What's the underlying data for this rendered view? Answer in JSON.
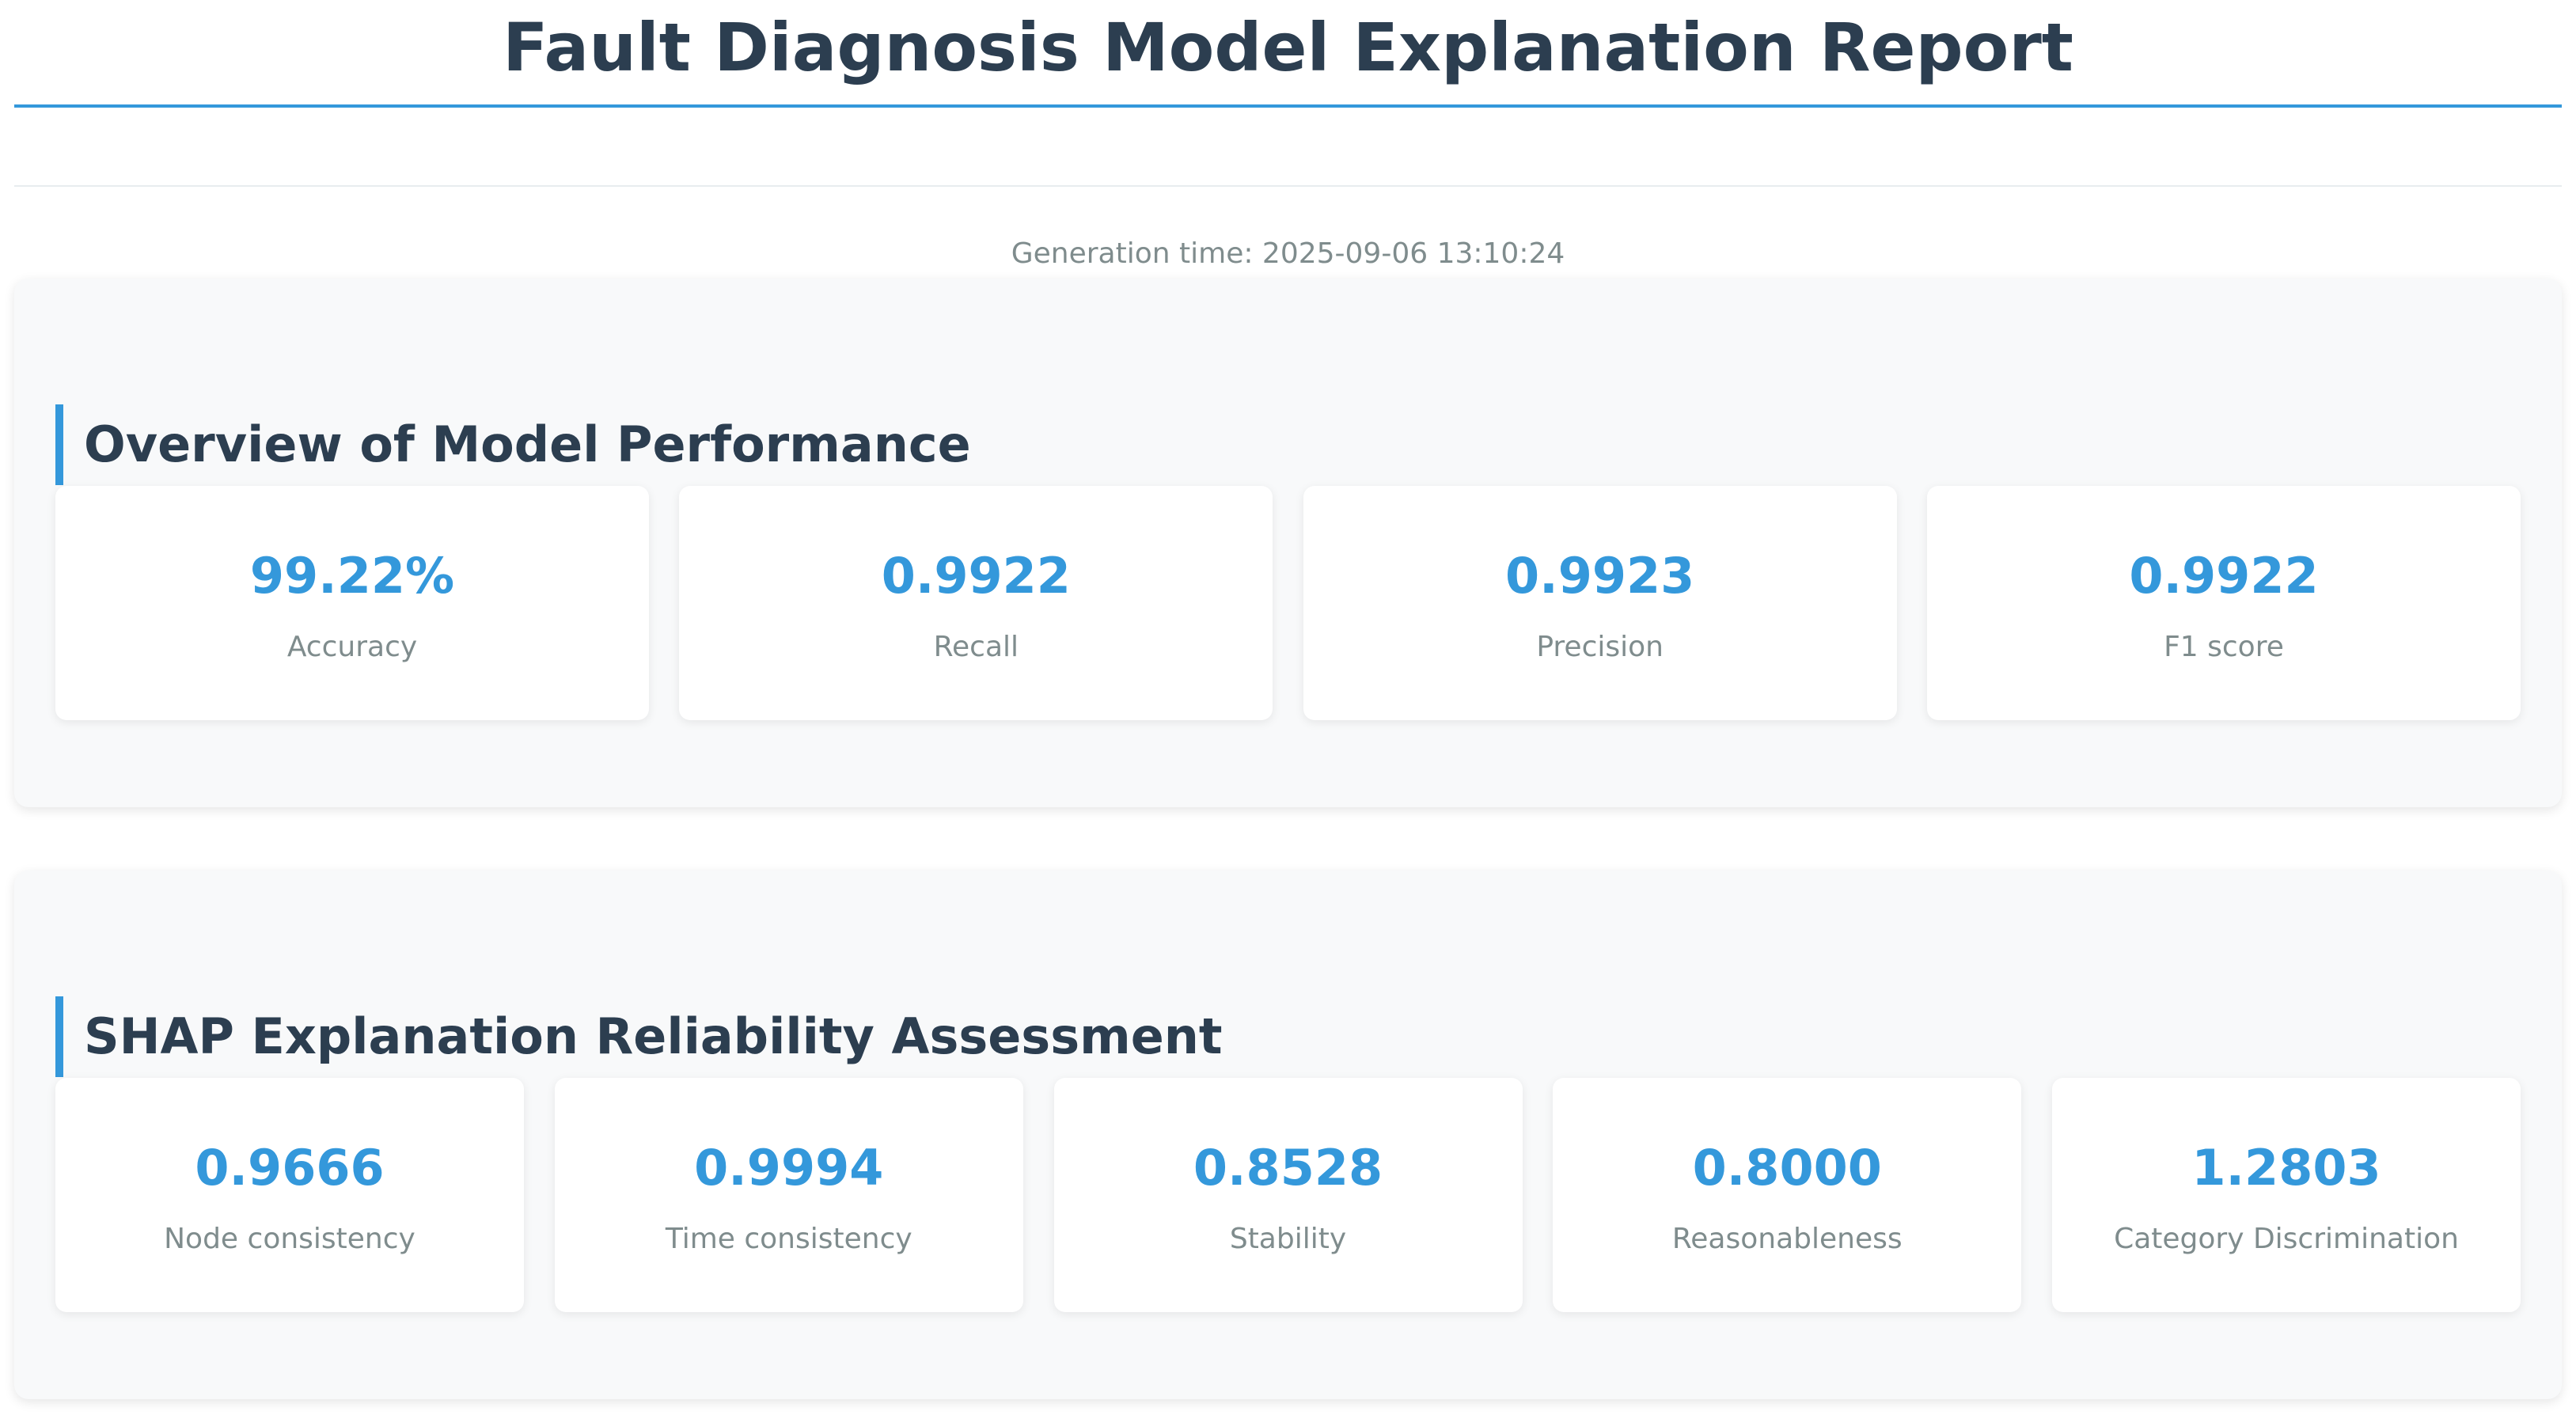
{
  "report": {
    "title": "Fault Diagnosis Model Explanation Report",
    "generation_time": "Generation time: 2025-09-06 13:10:24"
  },
  "performance": {
    "title": "Overview of Model Performance",
    "metrics": [
      {
        "value": "99.22%",
        "label": "Accuracy"
      },
      {
        "value": "0.9922",
        "label": "Recall"
      },
      {
        "value": "0.9923",
        "label": "Precision"
      },
      {
        "value": "0.9922",
        "label": "F1 score"
      }
    ]
  },
  "shap": {
    "title": "SHAP Explanation Reliability Assessment",
    "metrics": [
      {
        "value": "0.9666",
        "label": "Node consistency"
      },
      {
        "value": "0.9994",
        "label": "Time consistency"
      },
      {
        "value": "0.8528",
        "label": "Stability"
      },
      {
        "value": "0.8000",
        "label": "Reasonableness"
      },
      {
        "value": "1.2803",
        "label": "Category Discrimination"
      }
    ]
  },
  "colors": {
    "accent": "#3498db",
    "heading": "#2c3e50",
    "muted": "#7f8c8d",
    "section_bg": "#f8f9fa"
  }
}
